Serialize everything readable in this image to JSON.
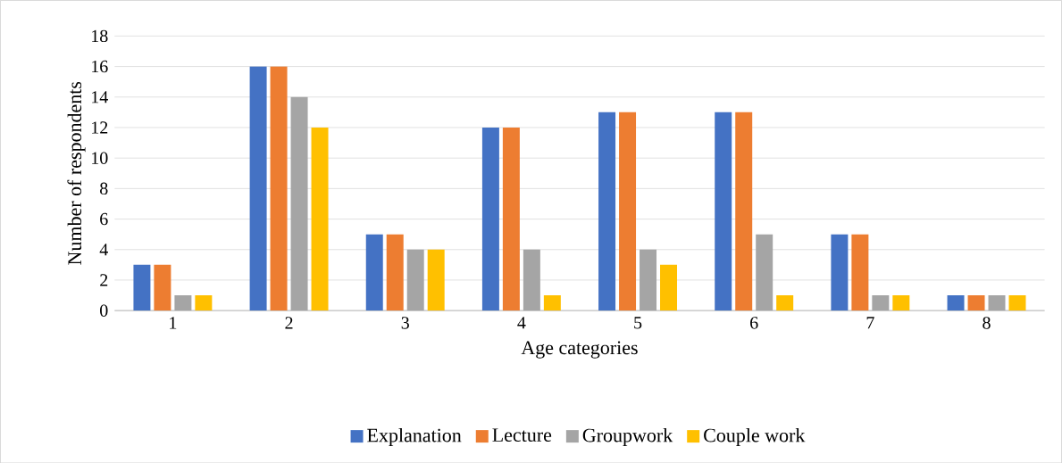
{
  "chart_data": {
    "type": "bar",
    "xlabel": "Age categories",
    "ylabel": "Number of respondents",
    "categories": [
      "1",
      "2",
      "3",
      "4",
      "5",
      "6",
      "7",
      "8"
    ],
    "series": [
      {
        "name": "Explanation",
        "color": "#4472c4",
        "values": [
          3,
          16,
          5,
          12,
          13,
          13,
          5,
          1
        ]
      },
      {
        "name": "Lecture",
        "color": "#ed7d31",
        "values": [
          3,
          16,
          5,
          12,
          13,
          13,
          5,
          1
        ]
      },
      {
        "name": "Groupwork",
        "color": "#a5a5a5",
        "values": [
          1,
          14,
          4,
          4,
          4,
          5,
          1,
          1
        ]
      },
      {
        "name": "Couple work",
        "color": "#ffc000",
        "values": [
          1,
          12,
          4,
          1,
          3,
          1,
          1,
          1
        ]
      }
    ],
    "ylim": [
      0,
      18
    ],
    "yticks": [
      0,
      2,
      4,
      6,
      8,
      10,
      12,
      14,
      16,
      18
    ],
    "grid": "y",
    "legend": "bottom"
  }
}
